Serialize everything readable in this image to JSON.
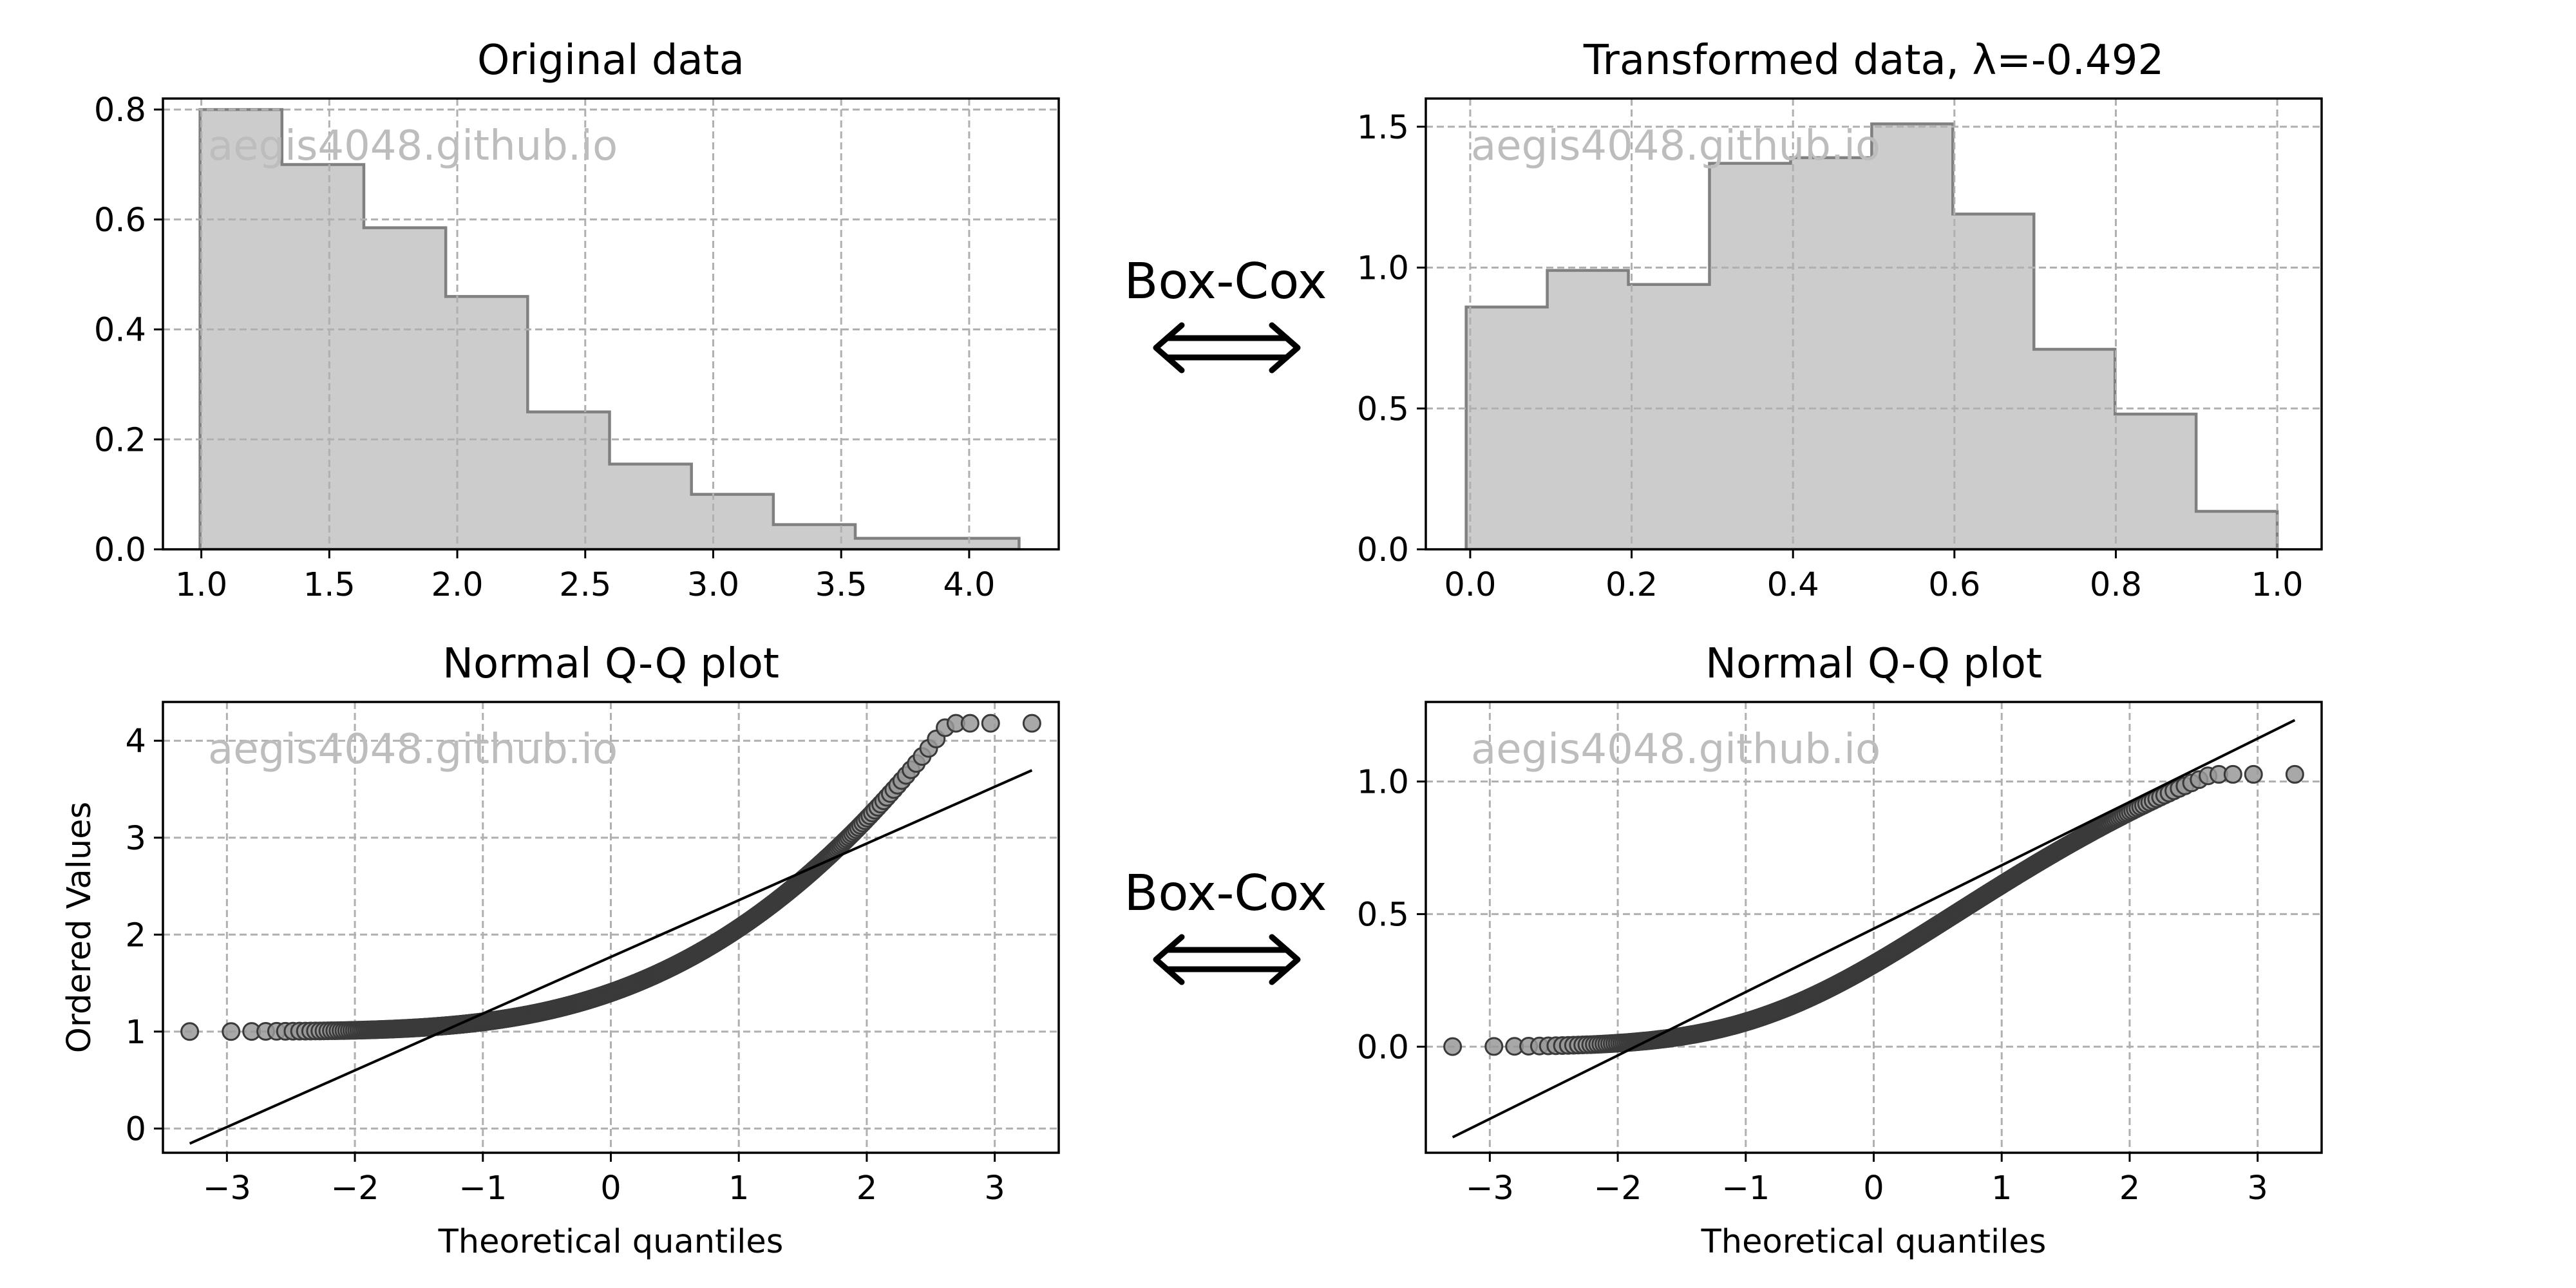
{
  "boxcox_label": "Box-Cox",
  "watermark": "aegis4048.github.io",
  "chart_data": [
    {
      "id": "orig-hist",
      "type": "step-histogram",
      "title": "Original data",
      "xlabel": "",
      "ylabel": "",
      "xlim": [
        0.85,
        4.35
      ],
      "ylim": [
        0,
        0.82
      ],
      "xticks": [
        1.0,
        1.5,
        2.0,
        2.5,
        3.0,
        3.5,
        4.0
      ],
      "xtick_labels": [
        "1.0",
        "1.5",
        "2.0",
        "2.5",
        "3.0",
        "3.5",
        "4.0"
      ],
      "yticks": [
        0.0,
        0.2,
        0.4,
        0.6,
        0.8
      ],
      "ytick_labels": [
        "0.0",
        "0.2",
        "0.4",
        "0.6",
        "0.8"
      ],
      "bin_edges": [
        0.995,
        1.315,
        1.635,
        1.955,
        2.275,
        2.595,
        2.915,
        3.235,
        3.555,
        3.875,
        4.195
      ],
      "values": [
        0.8,
        0.7,
        0.585,
        0.46,
        0.25,
        0.155,
        0.1,
        0.045,
        0.02,
        0.02
      ],
      "grid": true
    },
    {
      "id": "trans-hist",
      "type": "step-histogram",
      "title": "Transformed data,  λ=-0.492",
      "xlabel": "",
      "ylabel": "",
      "xlim": [
        -0.055,
        1.055
      ],
      "ylim": [
        0,
        1.6
      ],
      "xticks": [
        0.0,
        0.2,
        0.4,
        0.6,
        0.8,
        1.0
      ],
      "xtick_labels": [
        "0.0",
        "0.2",
        "0.4",
        "0.6",
        "0.8",
        "1.0"
      ],
      "yticks": [
        0.0,
        0.5,
        1.0,
        1.5
      ],
      "ytick_labels": [
        "0.0",
        "0.5",
        "1.0",
        "1.5"
      ],
      "bin_edges": [
        -0.005,
        0.0955,
        0.196,
        0.2965,
        0.397,
        0.4975,
        0.598,
        0.6985,
        0.799,
        0.8995,
        1.0
      ],
      "values": [
        0.86,
        0.99,
        0.94,
        1.37,
        1.39,
        1.51,
        1.19,
        0.71,
        0.48,
        0.135
      ],
      "grid": true
    },
    {
      "id": "orig-qq",
      "type": "scatter",
      "title": "Normal Q-Q plot",
      "xlabel": "Theoretical quantiles",
      "ylabel": "Ordered Values",
      "xlim": [
        -3.5,
        3.5
      ],
      "ylim": [
        -0.25,
        4.4
      ],
      "xticks": [
        -3,
        -2,
        -1,
        0,
        1,
        2,
        3
      ],
      "xtick_labels": [
        "−3",
        "−2",
        "−1",
        "0",
        "1",
        "2",
        "3"
      ],
      "yticks": [
        0,
        1,
        2,
        3,
        4
      ],
      "ytick_labels": [
        "0",
        "1",
        "2",
        "3",
        "4"
      ],
      "n_points": 1000,
      "qq_model": "shifted_exponential",
      "dist_params": {
        "min": 1.0,
        "scale": 0.58,
        "max": 4.18
      },
      "fit_line": {
        "slope": 0.585,
        "intercept": 1.77
      },
      "grid": true
    },
    {
      "id": "trans-qq",
      "type": "scatter",
      "title": "Normal Q-Q plot",
      "xlabel": "Theoretical quantiles",
      "ylabel": "",
      "xlim": [
        -3.5,
        3.5
      ],
      "ylim": [
        -0.4,
        1.3
      ],
      "xticks": [
        -3,
        -2,
        -1,
        0,
        1,
        2,
        3
      ],
      "xtick_labels": [
        "−3",
        "−2",
        "−1",
        "0",
        "1",
        "2",
        "3"
      ],
      "yticks": [
        0.0,
        0.5,
        1.0
      ],
      "ytick_labels": [
        "0.0",
        "0.5",
        "1.0"
      ],
      "n_points": 1000,
      "qq_model": "boxcox",
      "dist_params": {
        "lambda": -0.492,
        "min": 1.0,
        "scale": 0.58,
        "max": 4.18
      },
      "fit_line": {
        "slope": 0.239,
        "intercept": 0.445
      },
      "grid": true
    }
  ]
}
